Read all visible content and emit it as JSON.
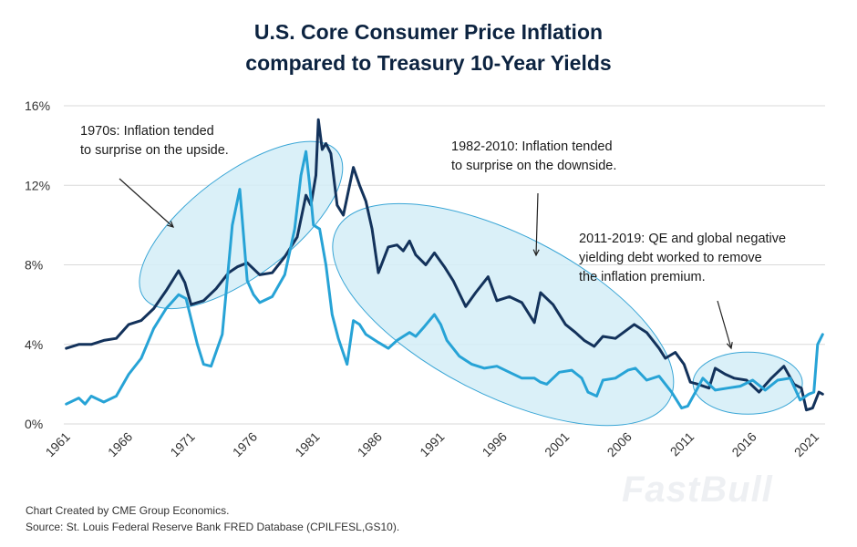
{
  "title_line1": "U.S. Core Consumer Price Inflation",
  "title_line2": "compared to Treasury 10-Year Yields",
  "source_line1": "Chart Created by CME Group Economics.",
  "source_line2": "Source: St. Louis Federal Reserve Bank FRED Database (CPILFESL,GS10).",
  "watermark": "FastBull",
  "annotations": [
    {
      "lines": [
        "1970s: Inflation tended",
        "to surprise on the upside."
      ]
    },
    {
      "lines": [
        "1982-2010: Inflation tended",
        "to surprise on the downside."
      ]
    },
    {
      "lines": [
        "2011-2019: QE and global negative",
        "yielding debt worked to remove",
        "the inflation premium."
      ]
    }
  ],
  "colors": {
    "title": "#0c2340",
    "yield_series": "#13325b",
    "inflation_series": "#27a3d6",
    "ellipse_fill": "#d4edf7",
    "ellipse_stroke": "#3aa6d6",
    "grid": "#d9d9d9"
  },
  "chart_data": {
    "type": "line",
    "title": "U.S. Core Consumer Price Inflation compared to Treasury 10-Year Yields",
    "xlabel": "",
    "ylabel": "",
    "xlim": [
      1960.8,
      2021.8
    ],
    "ylim": [
      0,
      16
    ],
    "y_ticks": [
      "0%",
      "4%",
      "8%",
      "12%",
      "16%"
    ],
    "y_tick_values": [
      0,
      4,
      8,
      12,
      16
    ],
    "x_ticks": [
      "1961",
      "1966",
      "1971",
      "1976",
      "1981",
      "1986",
      "1991",
      "1996",
      "2001",
      "2006",
      "2011",
      "2016",
      "2021"
    ],
    "x_tick_values": [
      1961,
      1966,
      1971,
      1976,
      1981,
      1986,
      1991,
      1996,
      2001,
      2006,
      2011,
      2016,
      2021
    ],
    "grid": true,
    "legend": "none",
    "series": [
      {
        "name": "Treasury 10-Year Yield (GS10)",
        "x": [
          1961.0,
          1962.0,
          1963.0,
          1964.0,
          1965.0,
          1966.0,
          1967.0,
          1968.0,
          1969.0,
          1970.0,
          1970.5,
          1971.0,
          1972.0,
          1973.0,
          1974.0,
          1974.7,
          1975.5,
          1976.5,
          1977.5,
          1978.5,
          1979.5,
          1980.2,
          1980.6,
          1981.0,
          1981.2,
          1981.5,
          1981.8,
          1982.2,
          1982.7,
          1983.2,
          1984.0,
          1984.5,
          1985.0,
          1985.5,
          1986.0,
          1986.8,
          1987.5,
          1988.0,
          1988.5,
          1989.0,
          1989.8,
          1990.5,
          1991.3,
          1992.0,
          1993.0,
          1993.8,
          1994.8,
          1995.5,
          1996.5,
          1997.5,
          1998.5,
          1999.0,
          2000.0,
          2001.0,
          2001.8,
          2002.5,
          2003.3,
          2004.0,
          2005.0,
          2006.5,
          2007.5,
          2008.5,
          2009.0,
          2009.8,
          2010.5,
          2011.0,
          2011.6,
          2012.5,
          2013.0,
          2013.8,
          2014.5,
          2015.5,
          2016.5,
          2017.5,
          2018.5,
          2019.3,
          2019.9,
          2020.3,
          2020.8,
          2021.3,
          2021.6
        ],
        "values": [
          3.8,
          4.0,
          4.0,
          4.2,
          4.3,
          5.0,
          5.2,
          5.8,
          6.7,
          7.7,
          7.1,
          6.0,
          6.2,
          6.8,
          7.6,
          7.9,
          8.1,
          7.5,
          7.6,
          8.4,
          9.4,
          11.5,
          11.0,
          12.5,
          15.3,
          13.8,
          14.1,
          13.6,
          11.0,
          10.5,
          12.9,
          12.0,
          11.2,
          9.8,
          7.6,
          8.9,
          9.0,
          8.7,
          9.2,
          8.5,
          8.0,
          8.6,
          7.9,
          7.2,
          5.9,
          6.6,
          7.4,
          6.2,
          6.4,
          6.1,
          5.1,
          6.6,
          6.0,
          5.0,
          4.6,
          4.2,
          3.9,
          4.4,
          4.3,
          5.0,
          4.6,
          3.8,
          3.3,
          3.6,
          3.0,
          2.1,
          2.0,
          1.8,
          2.8,
          2.5,
          2.3,
          2.2,
          1.6,
          2.3,
          2.9,
          2.0,
          1.8,
          0.7,
          0.8,
          1.6,
          1.5
        ]
      },
      {
        "name": "Core CPI Inflation (CPILFESL)",
        "x": [
          1961.0,
          1962.0,
          1962.5,
          1963.0,
          1964.0,
          1965.0,
          1966.0,
          1967.0,
          1968.0,
          1969.0,
          1970.0,
          1970.6,
          1971.5,
          1972.0,
          1972.6,
          1973.5,
          1974.3,
          1974.9,
          1975.5,
          1976.0,
          1976.5,
          1977.5,
          1978.5,
          1979.3,
          1979.8,
          1980.2,
          1980.5,
          1980.8,
          1981.3,
          1981.8,
          1982.3,
          1982.8,
          1983.5,
          1984.0,
          1984.5,
          1985.0,
          1986.0,
          1986.8,
          1987.5,
          1988.0,
          1988.5,
          1989.0,
          1989.7,
          1990.5,
          1991.0,
          1991.5,
          1992.5,
          1993.5,
          1994.5,
          1995.5,
          1996.5,
          1997.5,
          1998.5,
          1999.0,
          1999.5,
          2000.5,
          2001.5,
          2002.3,
          2002.8,
          2003.5,
          2004.0,
          2005.0,
          2006.0,
          2006.6,
          2007.5,
          2008.5,
          2009.5,
          2010.3,
          2010.8,
          2011.5,
          2012.0,
          2013.0,
          2014.0,
          2015.0,
          2016.0,
          2017.0,
          2018.0,
          2019.0,
          2019.8,
          2020.5,
          2020.9,
          2021.2,
          2021.6
        ],
        "values": [
          1.0,
          1.3,
          1.0,
          1.4,
          1.1,
          1.4,
          2.5,
          3.3,
          4.8,
          5.8,
          6.5,
          6.3,
          4.0,
          3.0,
          2.9,
          4.5,
          10.0,
          11.8,
          7.2,
          6.5,
          6.1,
          6.4,
          7.5,
          9.8,
          12.5,
          13.7,
          12.0,
          10.0,
          9.8,
          8.0,
          5.5,
          4.3,
          3.0,
          5.2,
          5.0,
          4.5,
          4.1,
          3.8,
          4.2,
          4.4,
          4.6,
          4.4,
          4.9,
          5.5,
          5.0,
          4.2,
          3.4,
          3.0,
          2.8,
          2.9,
          2.6,
          2.3,
          2.3,
          2.1,
          2.0,
          2.6,
          2.7,
          2.3,
          1.6,
          1.4,
          2.2,
          2.3,
          2.7,
          2.8,
          2.2,
          2.4,
          1.6,
          0.8,
          0.9,
          1.7,
          2.3,
          1.7,
          1.8,
          1.9,
          2.2,
          1.7,
          2.2,
          2.3,
          1.2,
          1.5,
          1.6,
          4.0,
          4.5
        ]
      }
    ]
  }
}
